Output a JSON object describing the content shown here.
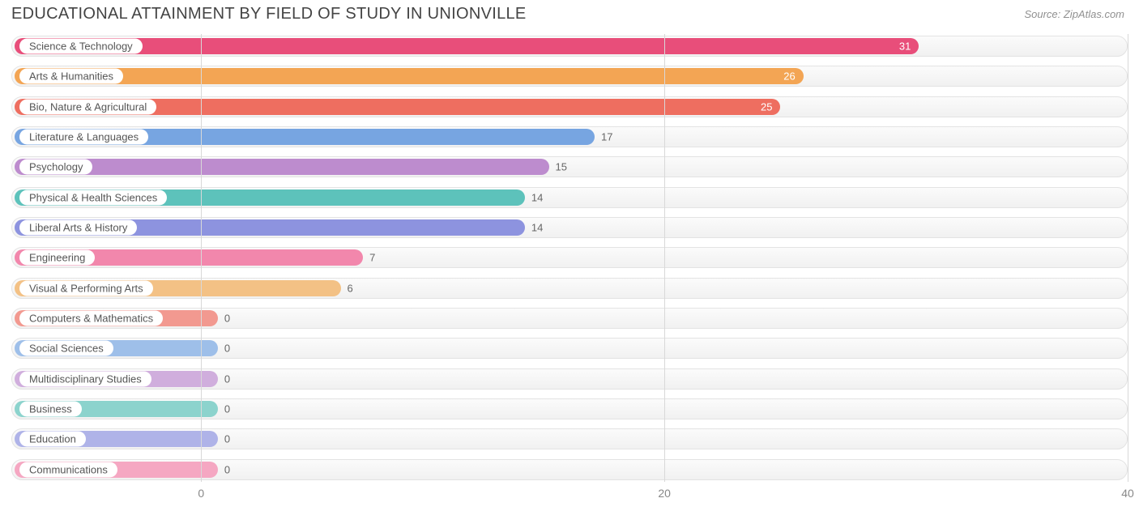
{
  "title": "EDUCATIONAL ATTAINMENT BY FIELD OF STUDY IN UNIONVILLE",
  "source": "Source: ZipAtlas.com",
  "chart": {
    "type": "bar-horizontal",
    "background_color": "#ffffff",
    "track_border_color": "#e3e3e3",
    "track_bg": "#f5f5f5",
    "grid_color": "#d8d8d8",
    "title_color": "#444444",
    "title_fontsize": 20,
    "source_color": "#909090",
    "label_fontsize": 13,
    "value_fontsize": 13,
    "tick_fontsize": 14,
    "tick_color": "#888888",
    "x_origin_pct": 17.0,
    "x_ticks": [
      0,
      20,
      40
    ],
    "x_tick_pcts": [
      17.0,
      58.5,
      100.0
    ],
    "x_max": 40,
    "rows": [
      {
        "label": "Science & Technology",
        "value": 31,
        "fill_pct": 81.3,
        "color": "#e84e7a",
        "value_inside": true
      },
      {
        "label": "Arts & Humanities",
        "value": 26,
        "fill_pct": 70.95,
        "color": "#f3a554",
        "value_inside": true
      },
      {
        "label": "Bio, Nature & Agricultural",
        "value": 25,
        "fill_pct": 68.9,
        "color": "#ee6e60",
        "value_inside": true
      },
      {
        "label": "Literature & Languages",
        "value": 17,
        "fill_pct": 52.25,
        "color": "#77a5e1",
        "value_inside": false
      },
      {
        "label": "Psychology",
        "value": 15,
        "fill_pct": 48.15,
        "color": "#bd8cce",
        "value_inside": false
      },
      {
        "label": "Physical & Health Sciences",
        "value": 14,
        "fill_pct": 46.0,
        "color": "#5dc2bb",
        "value_inside": false
      },
      {
        "label": "Liberal Arts & History",
        "value": 14,
        "fill_pct": 46.0,
        "color": "#8d93df",
        "value_inside": false
      },
      {
        "label": "Engineering",
        "value": 7,
        "fill_pct": 31.5,
        "color": "#f287ac",
        "value_inside": false
      },
      {
        "label": "Visual & Performing Arts",
        "value": 6,
        "fill_pct": 29.5,
        "color": "#f3c185",
        "value_inside": false
      },
      {
        "label": "Computers & Mathematics",
        "value": 0,
        "fill_pct": 18.5,
        "color": "#f29990",
        "value_inside": false
      },
      {
        "label": "Social Sciences",
        "value": 0,
        "fill_pct": 18.5,
        "color": "#9ebfe9",
        "value_inside": false
      },
      {
        "label": "Multidisciplinary Studies",
        "value": 0,
        "fill_pct": 18.5,
        "color": "#d0aedd",
        "value_inside": false
      },
      {
        "label": "Business",
        "value": 0,
        "fill_pct": 18.5,
        "color": "#8cd3cd",
        "value_inside": false
      },
      {
        "label": "Education",
        "value": 0,
        "fill_pct": 18.5,
        "color": "#afb3e8",
        "value_inside": false
      },
      {
        "label": "Communications",
        "value": 0,
        "fill_pct": 18.5,
        "color": "#f5a7c2",
        "value_inside": false
      }
    ]
  }
}
